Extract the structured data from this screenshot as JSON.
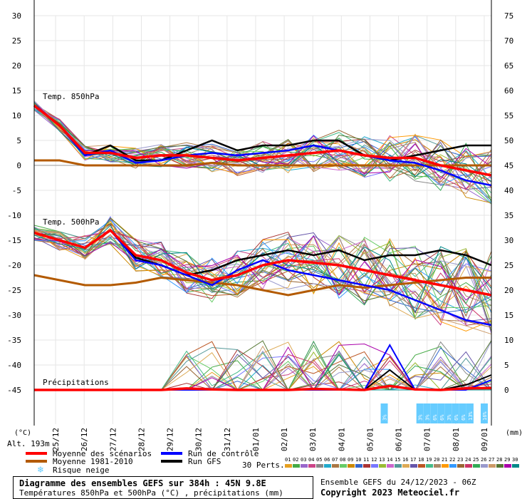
{
  "chart_data": {
    "type": "line",
    "title": "Diagramme des ensembles GEFS sur 384h : 45N 9.8E",
    "subtitle": "Températures 850hPa et 500hPa (°C) , précipitations (mm)",
    "run_info": "Ensemble GEFS du 24/12/2023 - 06Z",
    "copyright": "Copyright 2023 Meteociel.fr",
    "altitude_label": "Alt. 193m",
    "left_axis_unit": "(°C)",
    "right_axis_unit": "(mm)",
    "left_ticks": [
      30,
      25,
      20,
      15,
      10,
      5,
      0,
      -5,
      -10,
      -15,
      -20,
      -25,
      -30,
      -35,
      -40,
      -45
    ],
    "right_ticks": [
      75,
      70,
      65,
      60,
      55,
      50,
      45,
      40,
      35,
      30,
      25,
      20,
      15,
      10,
      5,
      0
    ],
    "x_labels": [
      "25/12",
      "26/12",
      "27/12",
      "28/12",
      "29/12",
      "30/12",
      "31/12",
      "01/01",
      "02/01",
      "03/01",
      "04/01",
      "05/01",
      "06/01",
      "07/01",
      "08/01",
      "09/01"
    ],
    "panel_labels": {
      "t850": "Temp. 850hPa",
      "t500": "Temp. 500hPa",
      "precip": "Précipitations"
    },
    "legend": {
      "mean": "Moyenne des scénarios",
      "climo": "Moyenne 1981-2010",
      "snow": "Risque neige",
      "control": "Run de contrôle",
      "gfs": "Run GFS",
      "perts": "30 Perts.",
      "pert_ids": [
        "01",
        "02",
        "03",
        "04",
        "05",
        "06",
        "07",
        "08",
        "09",
        "10",
        "11",
        "12",
        "13",
        "14",
        "15",
        "16",
        "17",
        "18",
        "19",
        "20",
        "21",
        "22",
        "23",
        "24",
        "25",
        "26",
        "27",
        "28",
        "29",
        "30"
      ]
    },
    "colors": {
      "mean": "#ff0000",
      "climo": "#b35a00",
      "control": "#0000ff",
      "gfs": "#000000",
      "snow": "#66ccff"
    },
    "snow_risk": [
      {
        "date": "06/01 00h",
        "pct": "3%"
      },
      {
        "date": "07/01 00h",
        "pct": "3%"
      },
      {
        "date": "07/01 06h",
        "pct": "3%"
      },
      {
        "date": "07/01 12h",
        "pct": "6%"
      },
      {
        "date": "07/01 18h",
        "pct": "6%"
      },
      {
        "date": "08/01 00h",
        "pct": "3%"
      },
      {
        "date": "08/01 06h",
        "pct": "6%"
      },
      {
        "date": "08/01 12h",
        "pct": "6%"
      },
      {
        "date": "08/01 18h",
        "pct": "13%"
      },
      {
        "date": "09/01 00h",
        "pct": "16%"
      }
    ],
    "series": {
      "t850_mean": [
        12,
        8,
        2.5,
        2.5,
        1.5,
        2,
        2,
        1.5,
        1,
        1.5,
        2,
        2.5,
        3,
        2,
        1.5,
        1.5,
        0,
        -1,
        -2
      ],
      "t850_climo": [
        1,
        1,
        0,
        0,
        0,
        0,
        0,
        0.5,
        0,
        0,
        0,
        0,
        0,
        0,
        0,
        0,
        0,
        0,
        0
      ],
      "t850_control": [
        12,
        8,
        2,
        3,
        0.5,
        1,
        2,
        2.5,
        2,
        2.5,
        3,
        4,
        3,
        2,
        1,
        0.5,
        -1,
        -3,
        -4
      ],
      "t850_gfs": [
        12,
        8,
        2,
        4,
        1,
        1,
        3,
        5,
        3,
        4,
        4,
        5,
        5,
        2,
        1,
        2,
        3,
        4,
        4
      ],
      "t500_mean": [
        -13.5,
        -15,
        -16.5,
        -13,
        -18,
        -19,
        -21.5,
        -23,
        -22,
        -20,
        -19,
        -19.5,
        -20,
        -21,
        -22,
        -23,
        -24,
        -25,
        -26
      ],
      "t500_climo": [
        -22,
        -23,
        -24,
        -24,
        -23.5,
        -22.5,
        -23,
        -23.5,
        -24,
        -25,
        -26,
        -25,
        -24,
        -24.5,
        -24,
        -23.5,
        -23,
        -22.5,
        -22.5
      ],
      "t500_control": [
        -13.5,
        -15,
        -16.5,
        -13,
        -19,
        -20,
        -22,
        -24,
        -21,
        -19,
        -21,
        -22,
        -23,
        -24,
        -25,
        -27,
        -29,
        -31,
        -32
      ],
      "t500_gfs": [
        -13.5,
        -15,
        -16.5,
        -13,
        -18.5,
        -20,
        -22,
        -21,
        -19,
        -18,
        -17,
        -18,
        -17,
        -19,
        -18,
        -18,
        -17,
        -18,
        -20
      ],
      "precip_mean": [
        0,
        0,
        0,
        0,
        0,
        0,
        0.3,
        0.1,
        0,
        0,
        0,
        0.2,
        0.1,
        0,
        0.8,
        0.1,
        0,
        0.3,
        0.4
      ],
      "precip_control": [
        0,
        0,
        0,
        0,
        0,
        0,
        0,
        0,
        0,
        0,
        0,
        0,
        0,
        0,
        9,
        0,
        0,
        0,
        2
      ],
      "precip_gfs": [
        0,
        0,
        0,
        0,
        0,
        0,
        0,
        0,
        0,
        0,
        0,
        0,
        0,
        0,
        4,
        0,
        0,
        1,
        3
      ]
    },
    "ranges": {
      "t_ylim": [
        -45,
        30
      ],
      "precip_ylim": [
        0,
        75
      ],
      "hours": 384
    }
  }
}
